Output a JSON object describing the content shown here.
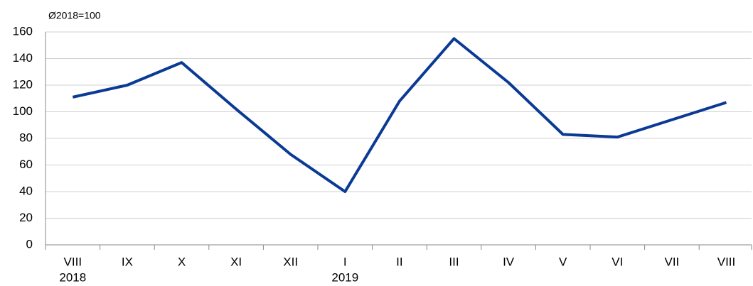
{
  "chart_data": {
    "type": "line",
    "subtitle": "Ø2018=100",
    "categories": [
      "VIII",
      "IX",
      "X",
      "XI",
      "XII",
      "I",
      "II",
      "III",
      "IV",
      "V",
      "VI",
      "VII",
      "VIII"
    ],
    "category_years": [
      "2018",
      null,
      null,
      null,
      null,
      "2019",
      null,
      null,
      null,
      null,
      null,
      null,
      null
    ],
    "values": [
      111,
      120,
      137,
      102,
      68,
      40,
      108,
      155,
      122,
      83,
      81,
      94,
      107
    ],
    "color": "#0a3a94",
    "ylim": [
      0,
      160
    ],
    "yticks": [
      0,
      20,
      40,
      60,
      80,
      100,
      120,
      140,
      160
    ],
    "grid": true
  }
}
